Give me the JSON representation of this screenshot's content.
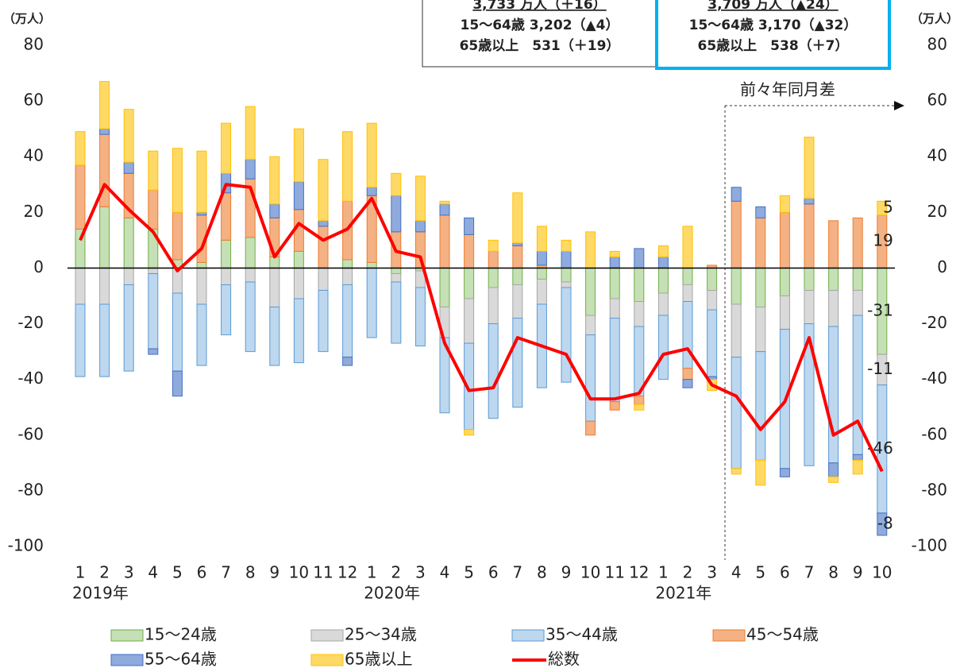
{
  "chart_data": {
    "type": "bar",
    "categories": [
      "1",
      "2",
      "3",
      "4",
      "5",
      "6",
      "7",
      "8",
      "9",
      "10",
      "11",
      "12",
      "1",
      "2",
      "3",
      "4",
      "5",
      "6",
      "7",
      "8",
      "9",
      "10",
      "11",
      "12",
      "1",
      "2",
      "3",
      "4",
      "5",
      "6",
      "7",
      "8",
      "9",
      "10"
    ],
    "year_labels": [
      "2019年",
      null,
      null,
      null,
      null,
      null,
      null,
      null,
      null,
      null,
      null,
      null,
      "2020年",
      null,
      null,
      null,
      null,
      null,
      null,
      null,
      null,
      null,
      null,
      null,
      "2021年",
      null,
      null,
      null,
      null,
      null,
      null,
      null,
      null,
      null
    ],
    "y_unit": "（万人）",
    "y2_unit": "（万人）",
    "ylim": [
      -100,
      80
    ],
    "yticks": [
      -100,
      -80,
      -60,
      -40,
      -20,
      0,
      20,
      40,
      60,
      80
    ],
    "y2lim": [
      -100,
      80
    ],
    "y2ticks": [
      -100,
      -80,
      -60,
      -40,
      -20,
      0,
      20,
      40,
      60,
      80
    ],
    "annotation": "前々年同月差",
    "boxes": [
      {
        "lines": [
          "3,733 万人（＋16）",
          "15～64歳 3,202（▲4）",
          "65歳以上　531（＋19）"
        ],
        "border": "#333333"
      },
      {
        "lines": [
          "3,709 万人（▲24）",
          "15～64歳 3,170（▲32）",
          "65歳以上　538（＋7）"
        ],
        "border": "#00b0f0"
      }
    ],
    "series": [
      {
        "name": "15～24歳",
        "color": "#c5e0b4",
        "stroke": "#70ad47",
        "values": [
          14,
          22,
          18,
          14,
          3,
          2,
          10,
          11,
          4,
          6,
          0,
          3,
          2,
          -2,
          -1,
          -14,
          -11,
          -7,
          -6,
          -4,
          -5,
          -17,
          -11,
          -12,
          -9,
          -6,
          -8,
          -13,
          -14,
          -10,
          -8,
          -8,
          -8,
          -31
        ]
      },
      {
        "name": "25～34歳",
        "color": "#d9d9d9",
        "stroke": "#a6a6a6",
        "values": [
          -13,
          -13,
          -6,
          -2,
          -9,
          -13,
          -6,
          -5,
          -14,
          -11,
          -8,
          -6,
          0,
          -3,
          -6,
          -11,
          -16,
          -13,
          -12,
          -9,
          -2,
          -7,
          -7,
          -9,
          -8,
          -6,
          -7,
          -19,
          -16,
          -12,
          -12,
          -13,
          -9,
          -11
        ]
      },
      {
        "name": "35～44歳",
        "color": "#bdd7ee",
        "stroke": "#5b9bd5",
        "values": [
          -26,
          -26,
          -31,
          -27,
          -28,
          -22,
          -18,
          -25,
          -21,
          -23,
          -22,
          -26,
          -25,
          -22,
          -21,
          -27,
          -31,
          -34,
          -32,
          -30,
          -34,
          -31,
          -30,
          -25,
          -23,
          -24,
          -24,
          -40,
          -39,
          -50,
          -51,
          -49,
          -50,
          -46
        ]
      },
      {
        "name": "45～54歳",
        "color": "#f4b183",
        "stroke": "#ed7d31",
        "values": [
          23,
          26,
          16,
          14,
          17,
          17,
          17,
          21,
          14,
          15,
          15,
          21,
          24,
          13,
          13,
          19,
          12,
          6,
          8,
          1,
          0,
          -5,
          -3,
          -3,
          0,
          -4,
          1,
          24,
          18,
          20,
          23,
          17,
          18,
          19
        ]
      },
      {
        "name": "55～64歳",
        "color": "#8faadc",
        "stroke": "#4472c4",
        "values": [
          0,
          2,
          4,
          -2,
          -9,
          1,
          7,
          7,
          5,
          10,
          2,
          -3,
          3,
          13,
          4,
          4,
          6,
          0,
          1,
          5,
          6,
          0,
          4,
          7,
          4,
          -3,
          -1,
          5,
          4,
          -3,
          2,
          -5,
          -2,
          -8
        ]
      },
      {
        "name": "65歳以上",
        "color": "#ffd966",
        "stroke": "#ffc000",
        "values": [
          12,
          17,
          19,
          14,
          23,
          22,
          18,
          19,
          17,
          19,
          22,
          25,
          23,
          8,
          16,
          1,
          -2,
          4,
          18,
          9,
          4,
          13,
          2,
          -2,
          4,
          15,
          -4,
          -2,
          -9,
          6,
          22,
          -2,
          -5,
          5
        ]
      }
    ],
    "line": {
      "name": "総数",
      "color": "#ff0000",
      "values": [
        10,
        30,
        21,
        13,
        -1,
        7,
        30,
        29,
        4,
        16,
        10,
        14,
        25,
        6,
        4,
        -27,
        -44,
        -43,
        -25,
        -28,
        -31,
        -47,
        -47,
        -45,
        -31,
        -29,
        -42,
        -46,
        -58,
        -48,
        -25,
        -60,
        -55,
        -73
      ]
    }
  }
}
